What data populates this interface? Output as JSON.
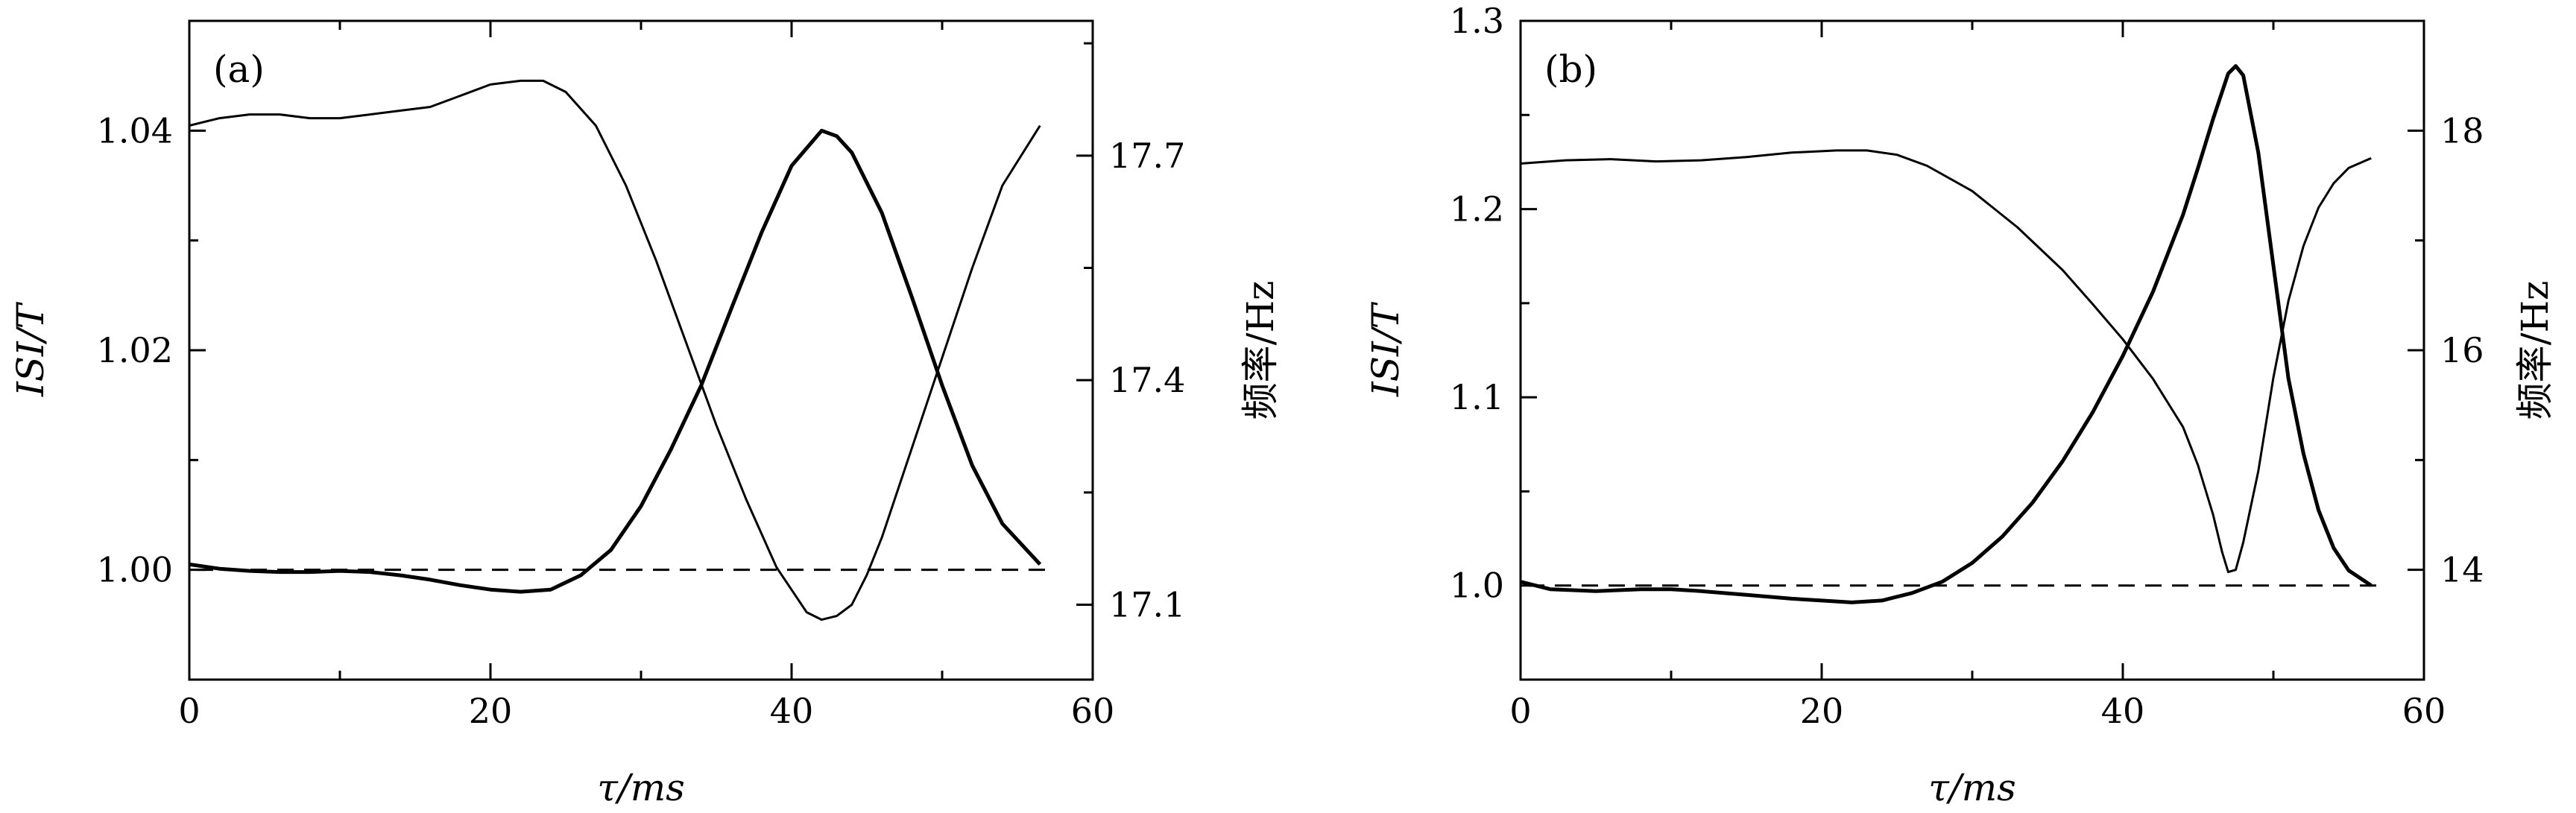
{
  "chart_data": [
    {
      "type": "line",
      "panel_label": "(a)",
      "xlabel": "τ/ms",
      "ylabel_left": "ISI/T",
      "ylabel_right": "频率/Hz",
      "xlim": [
        0,
        60
      ],
      "ylim_left": [
        0.99,
        1.05
      ],
      "ylim_right": [
        17.0,
        17.88
      ],
      "x_ticks": [
        "0",
        "20",
        "40",
        "60"
      ],
      "y_ticks_left": [
        "1.00",
        "1.02",
        "1.04"
      ],
      "y_ticks_right": [
        "17.1",
        "17.4",
        "17.7"
      ],
      "reference_line": {
        "axis": "left",
        "value": 1.0
      },
      "series": [
        {
          "axis": "left",
          "x": [
            0,
            2,
            4,
            6,
            8,
            10,
            12,
            14,
            16,
            18,
            20,
            22,
            24,
            26,
            28,
            30,
            32,
            34,
            36,
            38,
            40,
            42,
            43,
            44,
            46,
            48,
            50,
            52,
            54,
            56.5
          ],
          "y": [
            1.0005,
            1.0001,
            0.9999,
            0.9998,
            0.9998,
            0.9999,
            0.9998,
            0.9995,
            0.9991,
            0.9986,
            0.9982,
            0.998,
            0.9982,
            0.9995,
            1.0018,
            1.0058,
            1.011,
            1.0168,
            1.0238,
            1.0307,
            1.0368,
            1.04,
            1.0395,
            1.038,
            1.0325,
            1.0248,
            1.0168,
            1.0095,
            1.0042,
            1.0005
          ]
        },
        {
          "axis": "right",
          "x": [
            0,
            2,
            4,
            6,
            8,
            10,
            12,
            14,
            16,
            18,
            20,
            22,
            23.5,
            25,
            27,
            29,
            31,
            33,
            35,
            37,
            39,
            41,
            42,
            43,
            44,
            45,
            46,
            48,
            50,
            52,
            54,
            56.5
          ],
          "y": [
            17.74,
            17.75,
            17.755,
            17.755,
            17.75,
            17.75,
            17.755,
            17.76,
            17.765,
            17.78,
            17.795,
            17.8,
            17.8,
            17.785,
            17.74,
            17.66,
            17.56,
            17.45,
            17.34,
            17.24,
            17.15,
            17.09,
            17.08,
            17.085,
            17.1,
            17.14,
            17.19,
            17.31,
            17.43,
            17.55,
            17.66,
            17.74
          ]
        }
      ]
    },
    {
      "type": "line",
      "panel_label": "(b)",
      "xlabel": "τ/ms",
      "ylabel_left": "ISI/T",
      "ylabel_right": "频率/Hz",
      "xlim": [
        0,
        60
      ],
      "ylim_left": [
        0.95,
        1.3
      ],
      "ylim_right": [
        13.0,
        19.0
      ],
      "x_ticks": [
        "0",
        "20",
        "40",
        "60"
      ],
      "y_ticks_left": [
        "1.0",
        "1.1",
        "1.2",
        "1.3"
      ],
      "y_ticks_right": [
        "14",
        "16",
        "18"
      ],
      "reference_line": {
        "axis": "left",
        "value": 1.0
      },
      "series": [
        {
          "axis": "left",
          "x": [
            0,
            2,
            5,
            8,
            10,
            12,
            15,
            18,
            20,
            22,
            24,
            26,
            28,
            30,
            32,
            34,
            36,
            38,
            40,
            42,
            44,
            45,
            46,
            47,
            47.5,
            48,
            49,
            50,
            51,
            52,
            53,
            54,
            55,
            56.5
          ],
          "y": [
            1.002,
            0.998,
            0.997,
            0.998,
            0.998,
            0.997,
            0.995,
            0.993,
            0.992,
            0.991,
            0.992,
            0.996,
            1.002,
            1.012,
            1.026,
            1.044,
            1.066,
            1.092,
            1.122,
            1.156,
            1.197,
            1.222,
            1.248,
            1.272,
            1.276,
            1.271,
            1.23,
            1.17,
            1.11,
            1.07,
            1.04,
            1.02,
            1.008,
            1.0
          ]
        },
        {
          "axis": "right",
          "x": [
            0,
            3,
            6,
            9,
            12,
            15,
            18,
            21,
            23,
            25,
            27,
            30,
            33,
            36,
            38,
            40,
            42,
            44,
            45,
            46,
            46.6,
            47,
            47.5,
            48,
            49,
            50,
            51,
            52,
            53,
            54,
            55,
            56.5
          ],
          "y": [
            17.7,
            17.73,
            17.74,
            17.72,
            17.73,
            17.76,
            17.8,
            17.82,
            17.82,
            17.78,
            17.68,
            17.45,
            17.12,
            16.73,
            16.42,
            16.1,
            15.74,
            15.3,
            14.95,
            14.5,
            14.16,
            13.98,
            14.0,
            14.25,
            14.9,
            15.75,
            16.45,
            16.95,
            17.3,
            17.52,
            17.66,
            17.75
          ]
        }
      ]
    }
  ]
}
